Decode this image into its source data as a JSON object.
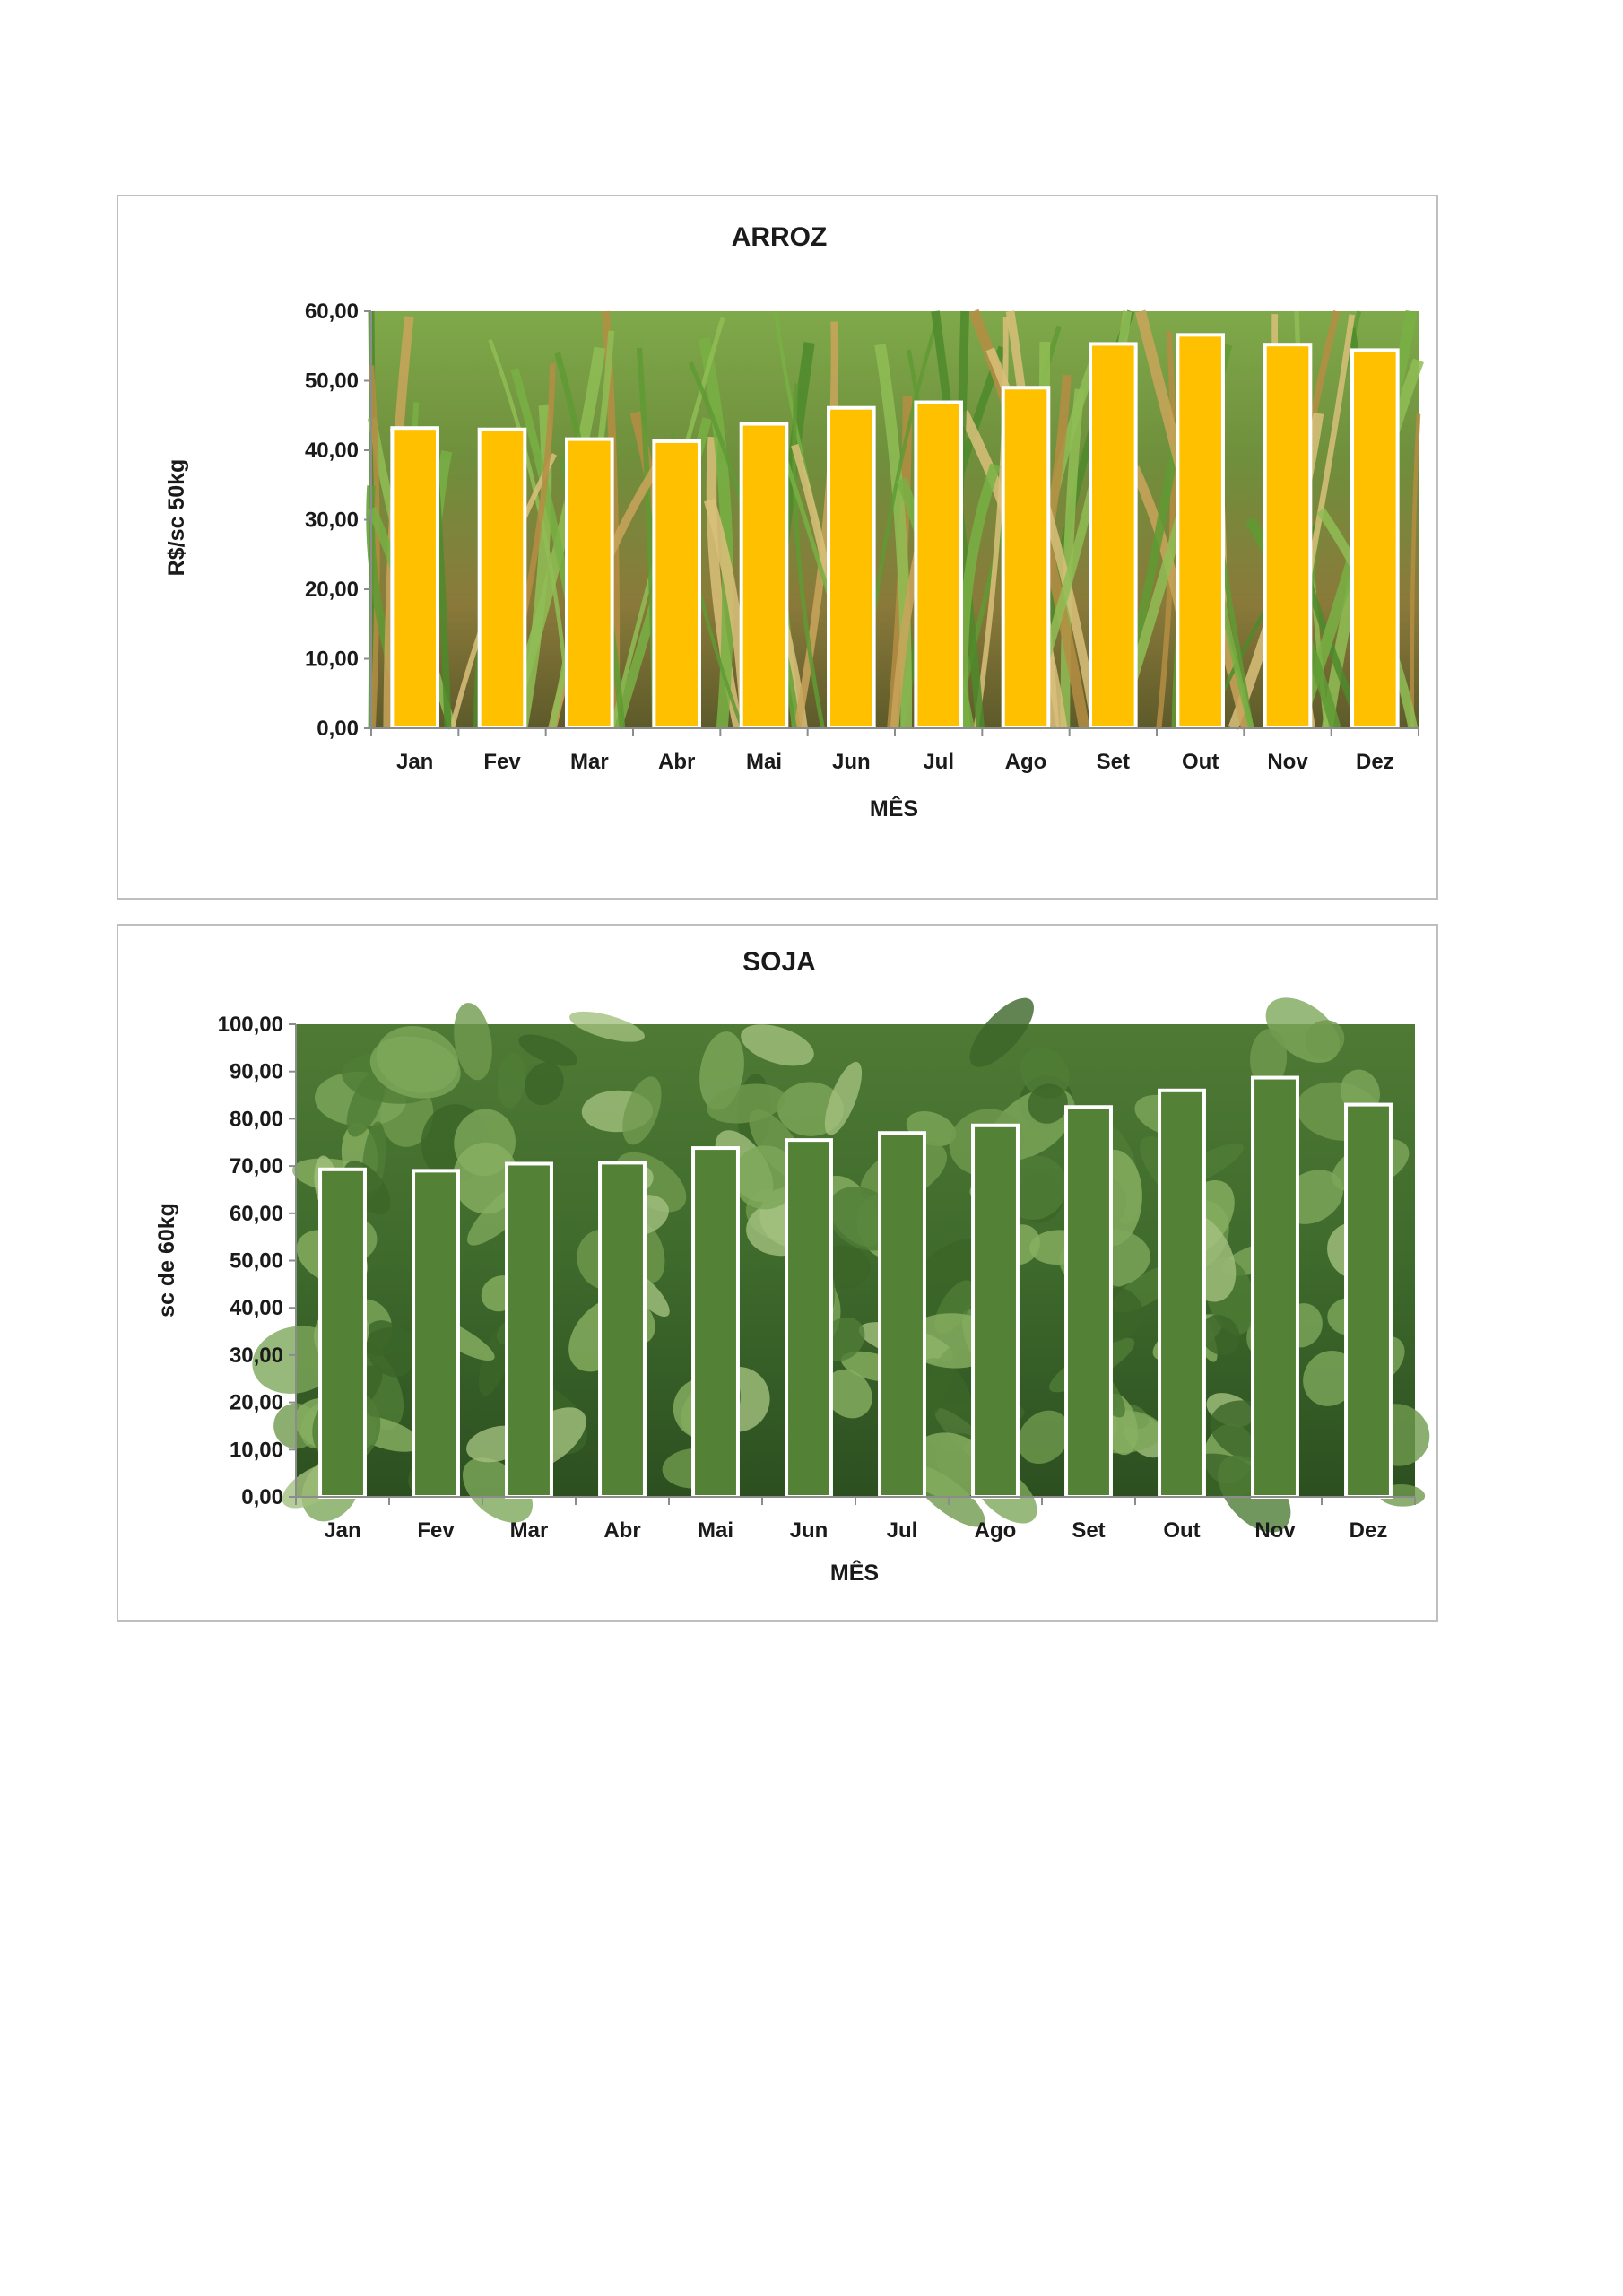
{
  "chart_data": [
    {
      "id": "arroz",
      "type": "bar",
      "title": "ARROZ",
      "xlabel": "MÊS",
      "ylabel": "R$/sc 50kg",
      "categories": [
        "Jan",
        "Fev",
        "Mar",
        "Abr",
        "Mai",
        "Jun",
        "Jul",
        "Ago",
        "Set",
        "Out",
        "Nov",
        "Dez"
      ],
      "values": [
        43.2,
        43.0,
        41.6,
        41.3,
        43.8,
        46.1,
        46.9,
        49.0,
        55.3,
        56.6,
        55.2,
        54.4
      ],
      "ylim": [
        0,
        60
      ],
      "yticks": [
        "0,00",
        "10,00",
        "20,00",
        "30,00",
        "40,00",
        "50,00",
        "60,00"
      ],
      "bar_color": "#ffc000",
      "bar_outline": "#ffffff",
      "background": "rice-field-photo",
      "grid": false,
      "legend": "none"
    },
    {
      "id": "soja",
      "type": "bar",
      "title": "SOJA",
      "xlabel": "MÊS",
      "ylabel": "sc de 60kg",
      "categories": [
        "Jan",
        "Fev",
        "Mar",
        "Abr",
        "Mai",
        "Jun",
        "Jul",
        "Ago",
        "Set",
        "Out",
        "Nov",
        "Dez"
      ],
      "values": [
        69.3,
        69.0,
        70.5,
        70.7,
        73.8,
        75.5,
        77.0,
        78.6,
        82.5,
        86.0,
        88.7,
        83.0
      ],
      "ylim": [
        0,
        100
      ],
      "yticks": [
        "0,00",
        "10,00",
        "20,00",
        "30,00",
        "40,00",
        "50,00",
        "60,00",
        "70,00",
        "80,00",
        "90,00",
        "100,00"
      ],
      "bar_color": "#538135",
      "bar_outline": "#ffffff",
      "background": "soybean-field-photo",
      "grid": false,
      "legend": "none"
    }
  ]
}
